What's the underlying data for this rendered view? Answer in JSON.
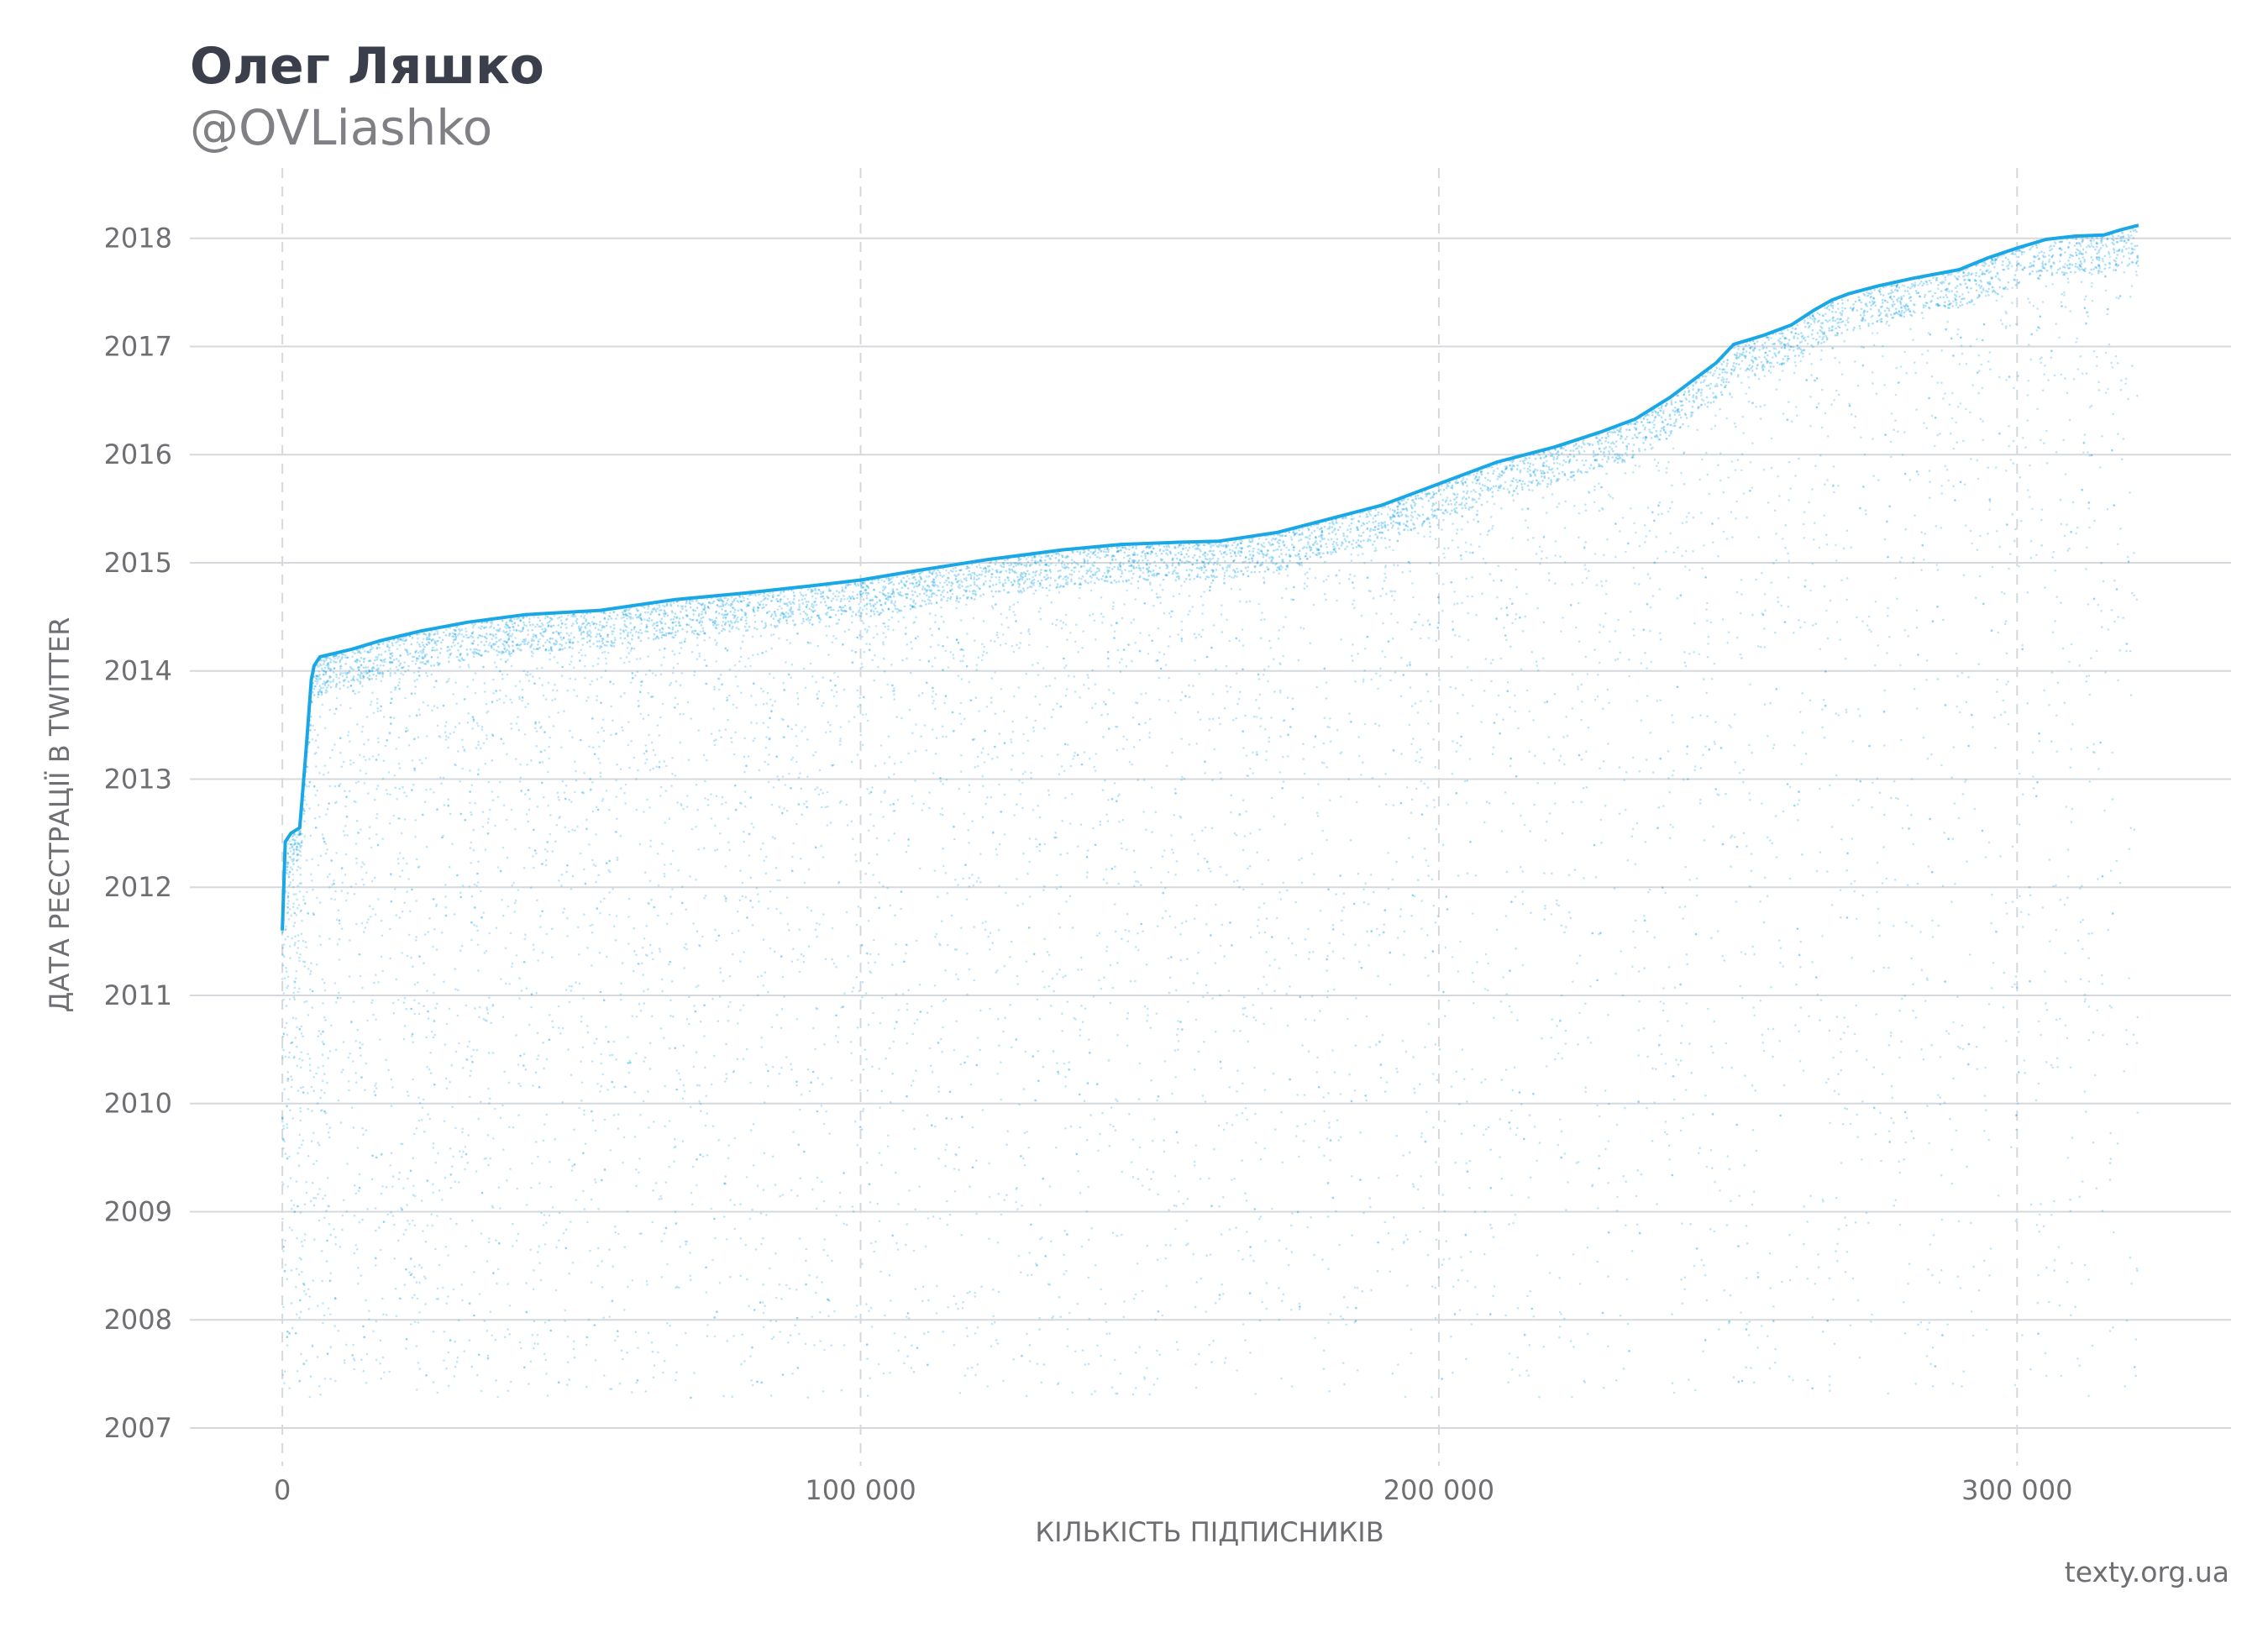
{
  "header": {
    "title": "Олег Ляшко",
    "subtitle": "@OVLiashko"
  },
  "footer": {
    "credit": "texty.org.ua"
  },
  "colors": {
    "series": "#1aa7e6",
    "scatter": "#1aa7e6",
    "grid": "#d5d8dc",
    "tick_text": "#6e6e73",
    "title": "#3a3f4b"
  },
  "chart_data": {
    "type": "scatter",
    "xlabel": "КІЛЬКІСТЬ ПІДПИСНИКІВ",
    "ylabel": "ДАТА РЕЄСТРАЦІЇ В TWITTER",
    "xlim": [
      -16000,
      337000
    ],
    "ylim": [
      2006.65,
      2018.65
    ],
    "x_ticks": [
      {
        "value": 0,
        "label": "0"
      },
      {
        "value": 100000,
        "label": "100 000"
      },
      {
        "value": 200000,
        "label": "200 000"
      },
      {
        "value": 300000,
        "label": "300 000"
      }
    ],
    "y_ticks": [
      {
        "value": 2007,
        "label": "2007"
      },
      {
        "value": 2008,
        "label": "2008"
      },
      {
        "value": 2009,
        "label": "2009"
      },
      {
        "value": 2010,
        "label": "2010"
      },
      {
        "value": 2011,
        "label": "2011"
      },
      {
        "value": 2012,
        "label": "2012"
      },
      {
        "value": 2013,
        "label": "2013"
      },
      {
        "value": 2014,
        "label": "2014"
      },
      {
        "value": 2015,
        "label": "2015"
      },
      {
        "value": 2016,
        "label": "2016"
      },
      {
        "value": 2017,
        "label": "2017"
      },
      {
        "value": 2018,
        "label": "2018"
      }
    ],
    "grid": {
      "horizontal": "solid",
      "vertical": "dashed"
    },
    "upper_envelope": {
      "x": [
        0,
        500,
        1500,
        3000,
        4000,
        5000,
        5500,
        6500,
        8000,
        12000,
        17000,
        24000,
        32000,
        42000,
        55000,
        68000,
        80000,
        92000,
        100000,
        110000,
        122000,
        135000,
        145000,
        155000,
        162000,
        172000,
        180000,
        190000,
        200000,
        210000,
        220000,
        228000,
        234000,
        240000,
        245000,
        248000,
        251000,
        256000,
        261000,
        265000,
        268000,
        271000,
        276000,
        282000,
        290000,
        295000,
        300000,
        305000,
        310000,
        315000,
        318000,
        321000
      ],
      "y": [
        2011.6,
        2012.42,
        2012.5,
        2012.55,
        2013.2,
        2013.92,
        2014.05,
        2014.13,
        2014.15,
        2014.2,
        2014.28,
        2014.37,
        2014.45,
        2014.52,
        2014.56,
        2014.66,
        2014.72,
        2014.79,
        2014.84,
        2014.93,
        2015.03,
        2015.12,
        2015.17,
        2015.19,
        2015.2,
        2015.28,
        2015.39,
        2015.53,
        2015.73,
        2015.93,
        2016.07,
        2016.21,
        2016.33,
        2016.53,
        2016.73,
        2016.85,
        2017.02,
        2017.1,
        2017.2,
        2017.34,
        2017.43,
        2017.49,
        2017.56,
        2017.63,
        2017.71,
        2017.82,
        2017.91,
        2017.99,
        2018.02,
        2018.03,
        2018.08,
        2018.12
      ]
    }
  }
}
